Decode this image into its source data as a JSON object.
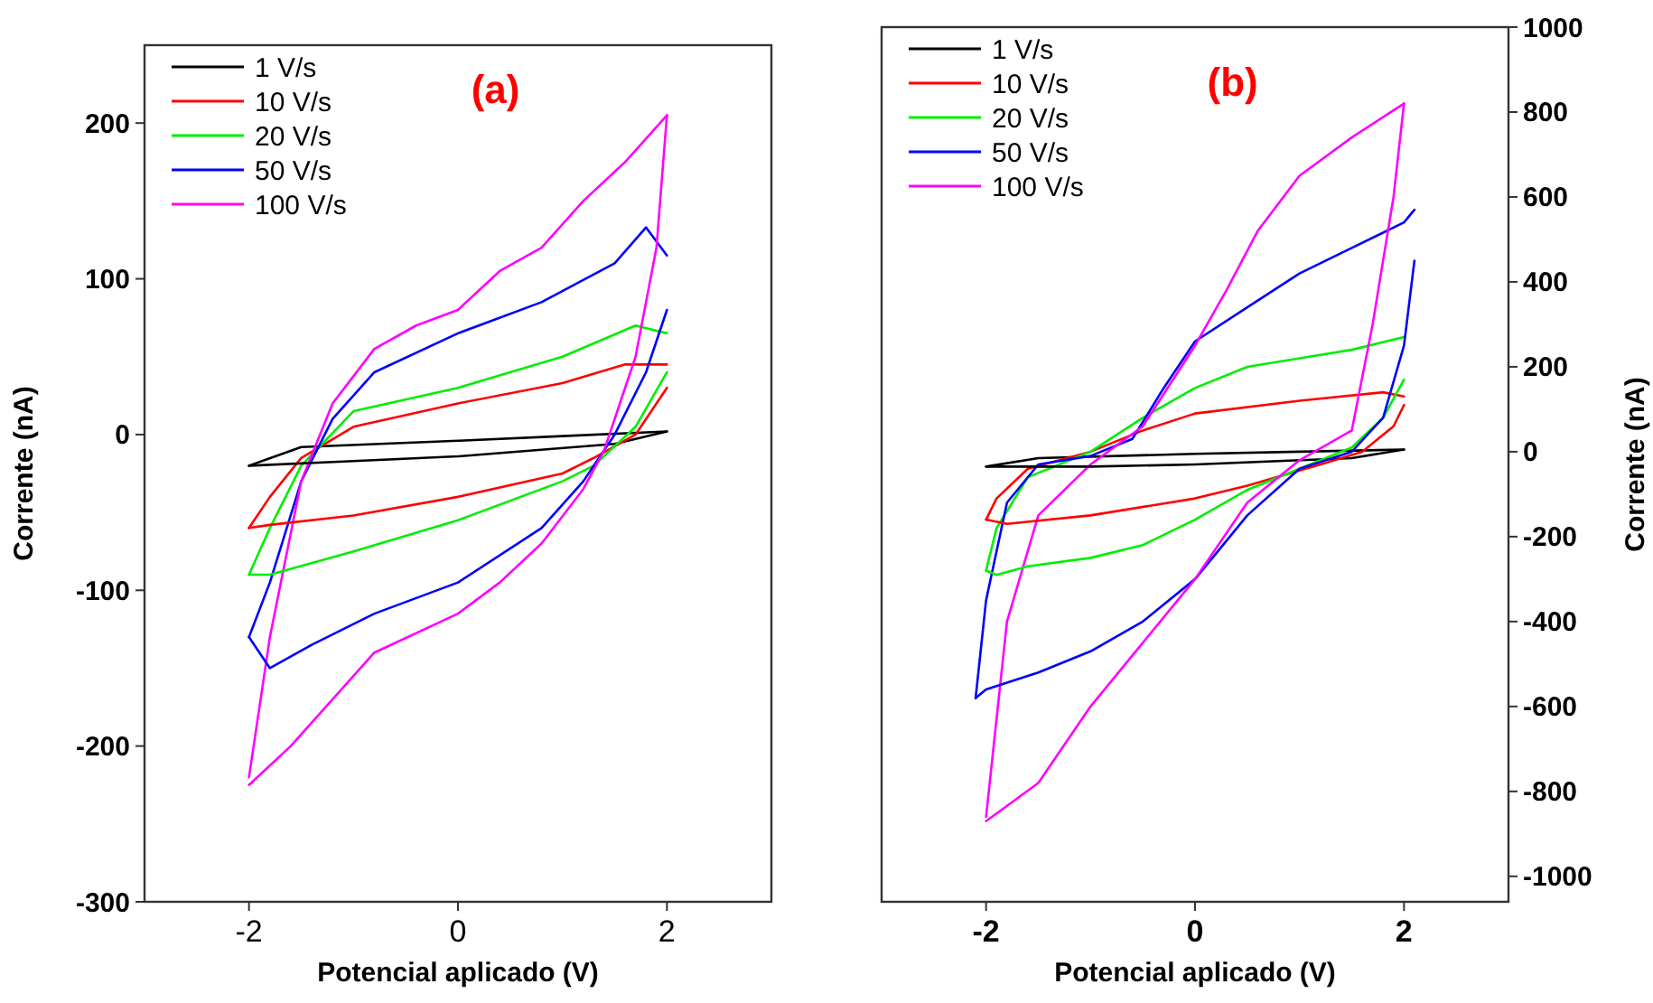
{
  "chart_data": [
    {
      "type": "line",
      "title": "(a)",
      "xlabel": "Potencial aplicado (V)",
      "ylabel": "Corrente (nA)",
      "xlim": [
        -3,
        3
      ],
      "xticks": [
        -2,
        0,
        2
      ],
      "ylim": [
        -300,
        250
      ],
      "yticks": [
        -300,
        -200,
        -100,
        0,
        100,
        200
      ],
      "legend": "top left",
      "series": [
        {
          "name": "1 V/s",
          "color": "#000000",
          "x": [
            -2,
            -1.5,
            0,
            1,
            2
          ],
          "values": [
            -20,
            -8,
            -4,
            -1,
            2
          ]
        },
        {
          "name": "10 V/s",
          "color": "#ff0000",
          "x": [
            -2,
            -1.8,
            -1.5,
            -1,
            0,
            1,
            1.6,
            2
          ],
          "values": [
            -60,
            -40,
            -15,
            5,
            20,
            33,
            45,
            45
          ]
        },
        {
          "name": "20 V/s",
          "color": "#00ee00",
          "x": [
            -2,
            -1.8,
            -1.5,
            -1,
            0,
            1,
            1.7,
            2
          ],
          "values": [
            -90,
            -60,
            -20,
            15,
            30,
            50,
            70,
            65
          ]
        },
        {
          "name": "50 V/s",
          "color": "#0000ff",
          "x": [
            -2,
            -1.8,
            -1.5,
            -1.2,
            -0.8,
            0,
            0.8,
            1.5,
            1.8,
            2
          ],
          "values": [
            -130,
            -95,
            -30,
            10,
            40,
            65,
            85,
            110,
            133,
            115
          ]
        },
        {
          "name": "100 V/s",
          "color": "#ff00ff",
          "x": [
            -2,
            -1.8,
            -1.5,
            -1.2,
            -0.8,
            -0.4,
            0,
            0.4,
            0.8,
            1.2,
            1.6,
            2
          ],
          "values": [
            -220,
            -130,
            -30,
            20,
            55,
            70,
            80,
            105,
            120,
            150,
            175,
            205
          ]
        },
        {
          "color": "#000000",
          "x": [
            2,
            1.5,
            0,
            -1,
            -2
          ],
          "values": [
            2,
            -6,
            -14,
            -17,
            -20
          ]
        },
        {
          "color": "#ff0000",
          "x": [
            2,
            1.7,
            1.3,
            1,
            0,
            -1,
            -1.8,
            -2
          ],
          "values": [
            30,
            0,
            -15,
            -25,
            -40,
            -52,
            -58,
            -60
          ]
        },
        {
          "color": "#00ee00",
          "x": [
            2,
            1.7,
            1.3,
            1,
            0,
            -1,
            -1.8,
            -2
          ],
          "values": [
            40,
            5,
            -20,
            -30,
            -55,
            -75,
            -90,
            -90
          ]
        },
        {
          "color": "#0000ff",
          "x": [
            2,
            1.8,
            1.5,
            1.2,
            0.8,
            0,
            -0.8,
            -1.4,
            -1.8,
            -2
          ],
          "values": [
            80,
            40,
            0,
            -30,
            -60,
            -95,
            -115,
            -135,
            -150,
            -130
          ]
        },
        {
          "color": "#ff00ff",
          "x": [
            2,
            1.9,
            1.7,
            1.4,
            1.2,
            0.8,
            0.4,
            0,
            -0.8,
            -1.2,
            -1.6,
            -2
          ],
          "values": [
            205,
            120,
            50,
            -10,
            -35,
            -70,
            -95,
            -115,
            -140,
            -170,
            -200,
            -225
          ]
        }
      ]
    },
    {
      "type": "line",
      "title": "(b)",
      "xlabel": "Potencial aplicado (V)",
      "y2label": "Corrente (nA)",
      "xlim": [
        -3,
        3
      ],
      "xticks": [
        -2,
        0,
        2
      ],
      "y2lim": [
        -1060,
        1000
      ],
      "y2ticks": [
        -1000,
        -800,
        -600,
        -400,
        -200,
        0,
        200,
        400,
        600,
        800,
        1000
      ],
      "legend": "top left",
      "series": [
        {
          "name": "1 V/s",
          "color": "#000000",
          "axis": "y2",
          "x": [
            -2,
            -1.5,
            0,
            1,
            2
          ],
          "values": [
            -35,
            -15,
            -5,
            0,
            5
          ]
        },
        {
          "name": "10 V/s",
          "color": "#ff0000",
          "axis": "y2",
          "x": [
            -2,
            -1.9,
            -1.6,
            -1,
            -0.5,
            0,
            1,
            1.8,
            2
          ],
          "values": [
            -160,
            -110,
            -40,
            0,
            50,
            90,
            120,
            140,
            130
          ]
        },
        {
          "name": "20 V/s",
          "color": "#00ee00",
          "axis": "y2",
          "x": [
            -2,
            -1.9,
            -1.6,
            -1,
            -0.5,
            0,
            0.5,
            1,
            1.5,
            2
          ],
          "values": [
            -280,
            -180,
            -60,
            0,
            80,
            150,
            200,
            220,
            240,
            270
          ]
        },
        {
          "name": "50 V/s",
          "color": "#0000ff",
          "axis": "y2",
          "x": [
            -2.1,
            -2,
            -1.8,
            -1.5,
            -1,
            -0.6,
            -0.3,
            0,
            0.5,
            1,
            1.5,
            2,
            2.1
          ],
          "values": [
            -580,
            -350,
            -120,
            -30,
            -10,
            30,
            150,
            260,
            340,
            420,
            480,
            540,
            570
          ]
        },
        {
          "name": "100 V/s",
          "color": "#ff00ff",
          "axis": "y2",
          "x": [
            -2,
            -1.8,
            -1.5,
            -1,
            -0.5,
            0,
            0.3,
            0.6,
            1,
            1.5,
            2
          ],
          "values": [
            -860,
            -400,
            -150,
            -30,
            60,
            250,
            380,
            520,
            650,
            740,
            820
          ]
        },
        {
          "color": "#000000",
          "axis": "y2",
          "x": [
            2,
            1.5,
            0,
            -1,
            -2
          ],
          "values": [
            5,
            -15,
            -30,
            -35,
            -35
          ]
        },
        {
          "color": "#ff0000",
          "axis": "y2",
          "x": [
            2,
            1.9,
            1.6,
            1.2,
            0.5,
            0,
            -1,
            -1.8,
            -2
          ],
          "values": [
            110,
            60,
            0,
            -30,
            -80,
            -110,
            -150,
            -170,
            -160
          ]
        },
        {
          "color": "#00ee00",
          "axis": "y2",
          "x": [
            2,
            1.8,
            1.5,
            1,
            0.5,
            0,
            -0.5,
            -1,
            -1.6,
            -1.9,
            -2
          ],
          "values": [
            170,
            80,
            10,
            -40,
            -90,
            -160,
            -220,
            -250,
            -270,
            -290,
            -280
          ]
        },
        {
          "color": "#0000ff",
          "axis": "y2",
          "x": [
            2.1,
            2,
            1.8,
            1.5,
            1,
            0.5,
            0,
            -0.5,
            -1,
            -1.5,
            -2,
            -2.1
          ],
          "values": [
            450,
            250,
            80,
            0,
            -40,
            -150,
            -300,
            -400,
            -470,
            -520,
            -560,
            -580
          ]
        },
        {
          "color": "#ff00ff",
          "axis": "y2",
          "x": [
            2,
            1.9,
            1.7,
            1.5,
            1,
            0.5,
            0,
            -0.5,
            -1,
            -1.5,
            -2
          ],
          "values": [
            820,
            600,
            300,
            50,
            -20,
            -120,
            -300,
            -450,
            -600,
            -780,
            -870
          ]
        }
      ]
    }
  ]
}
